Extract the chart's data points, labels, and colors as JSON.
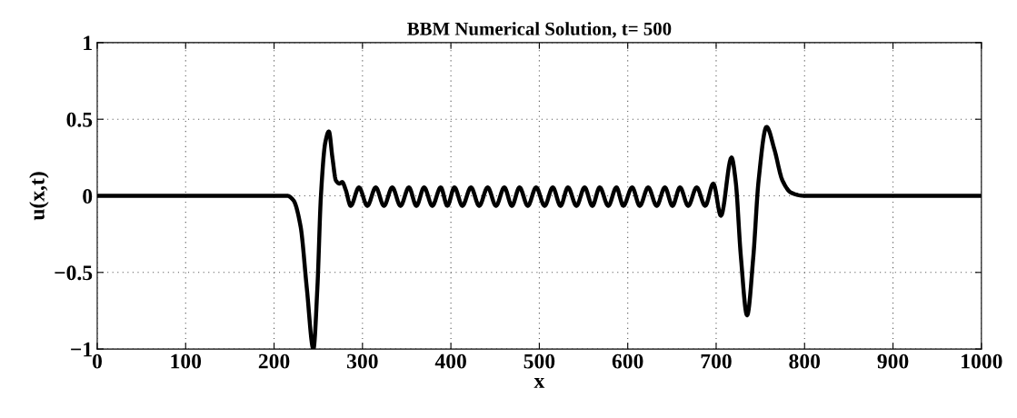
{
  "chart_data": {
    "type": "line",
    "title": "BBM Numerical Solution, t= 500",
    "xlabel": "x",
    "ylabel": "u(x,t)",
    "x": [
      0,
      200,
      215,
      222,
      230,
      237,
      244.5,
      249,
      253,
      258,
      262,
      266,
      270,
      274,
      277,
      281,
      286.7,
      296,
      305.5,
      315,
      324.3,
      333.7,
      343,
      352.5,
      361,
      369.7,
      379,
      388.5,
      396,
      404,
      413,
      422.7,
      432,
      441.6,
      451,
      460.4,
      469,
      477.6,
      487,
      496.4,
      506,
      515.2,
      524,
      532.4,
      542,
      551.2,
      560,
      568.3,
      578,
      587.2,
      595,
      605,
      613.6,
      623.1,
      632.8,
      642,
      650.6,
      659.1,
      668.4,
      678,
      687.6,
      696.8,
      705.4,
      717.4,
      722,
      728,
      735,
      742,
      748,
      757,
      766,
      775,
      785,
      800,
      1000
    ],
    "series": [
      {
        "color": "#000000",
        "values": [
          0,
          0,
          0,
          -0.03,
          -0.2,
          -0.6,
          -1,
          -0.6,
          0,
          0.35,
          0.42,
          0.25,
          0.1,
          0.08,
          0.09,
          0.04,
          -0.065,
          0.055,
          -0.065,
          0.055,
          -0.065,
          0.055,
          -0.065,
          0.055,
          -0.065,
          0.055,
          -0.065,
          0.055,
          -0.065,
          0.055,
          -0.065,
          0.055,
          -0.065,
          0.055,
          -0.065,
          0.055,
          -0.065,
          0.055,
          -0.065,
          0.055,
          -0.065,
          0.055,
          -0.065,
          0.055,
          -0.065,
          0.055,
          -0.065,
          0.055,
          -0.065,
          0.055,
          -0.065,
          0.055,
          -0.065,
          0.055,
          -0.065,
          0.055,
          -0.065,
          0.055,
          -0.065,
          0.055,
          -0.065,
          0.08,
          -0.13,
          0.25,
          0.1,
          -0.4,
          -0.78,
          -0.4,
          0.1,
          0.45,
          0.3,
          0.1,
          0.02,
          0,
          0
        ]
      }
    ],
    "xlim": [
      0,
      1000
    ],
    "ylim": [
      -1,
      1
    ],
    "xticks": [
      0,
      100,
      200,
      300,
      400,
      500,
      600,
      700,
      800,
      900,
      1000
    ],
    "yticks": [
      {
        "value": -1,
        "label": "−1"
      },
      {
        "value": -0.5,
        "label": "−0.5"
      },
      0,
      0.5,
      1
    ],
    "grid": true,
    "line_style": "solid",
    "marker": "none",
    "legend": false
  }
}
